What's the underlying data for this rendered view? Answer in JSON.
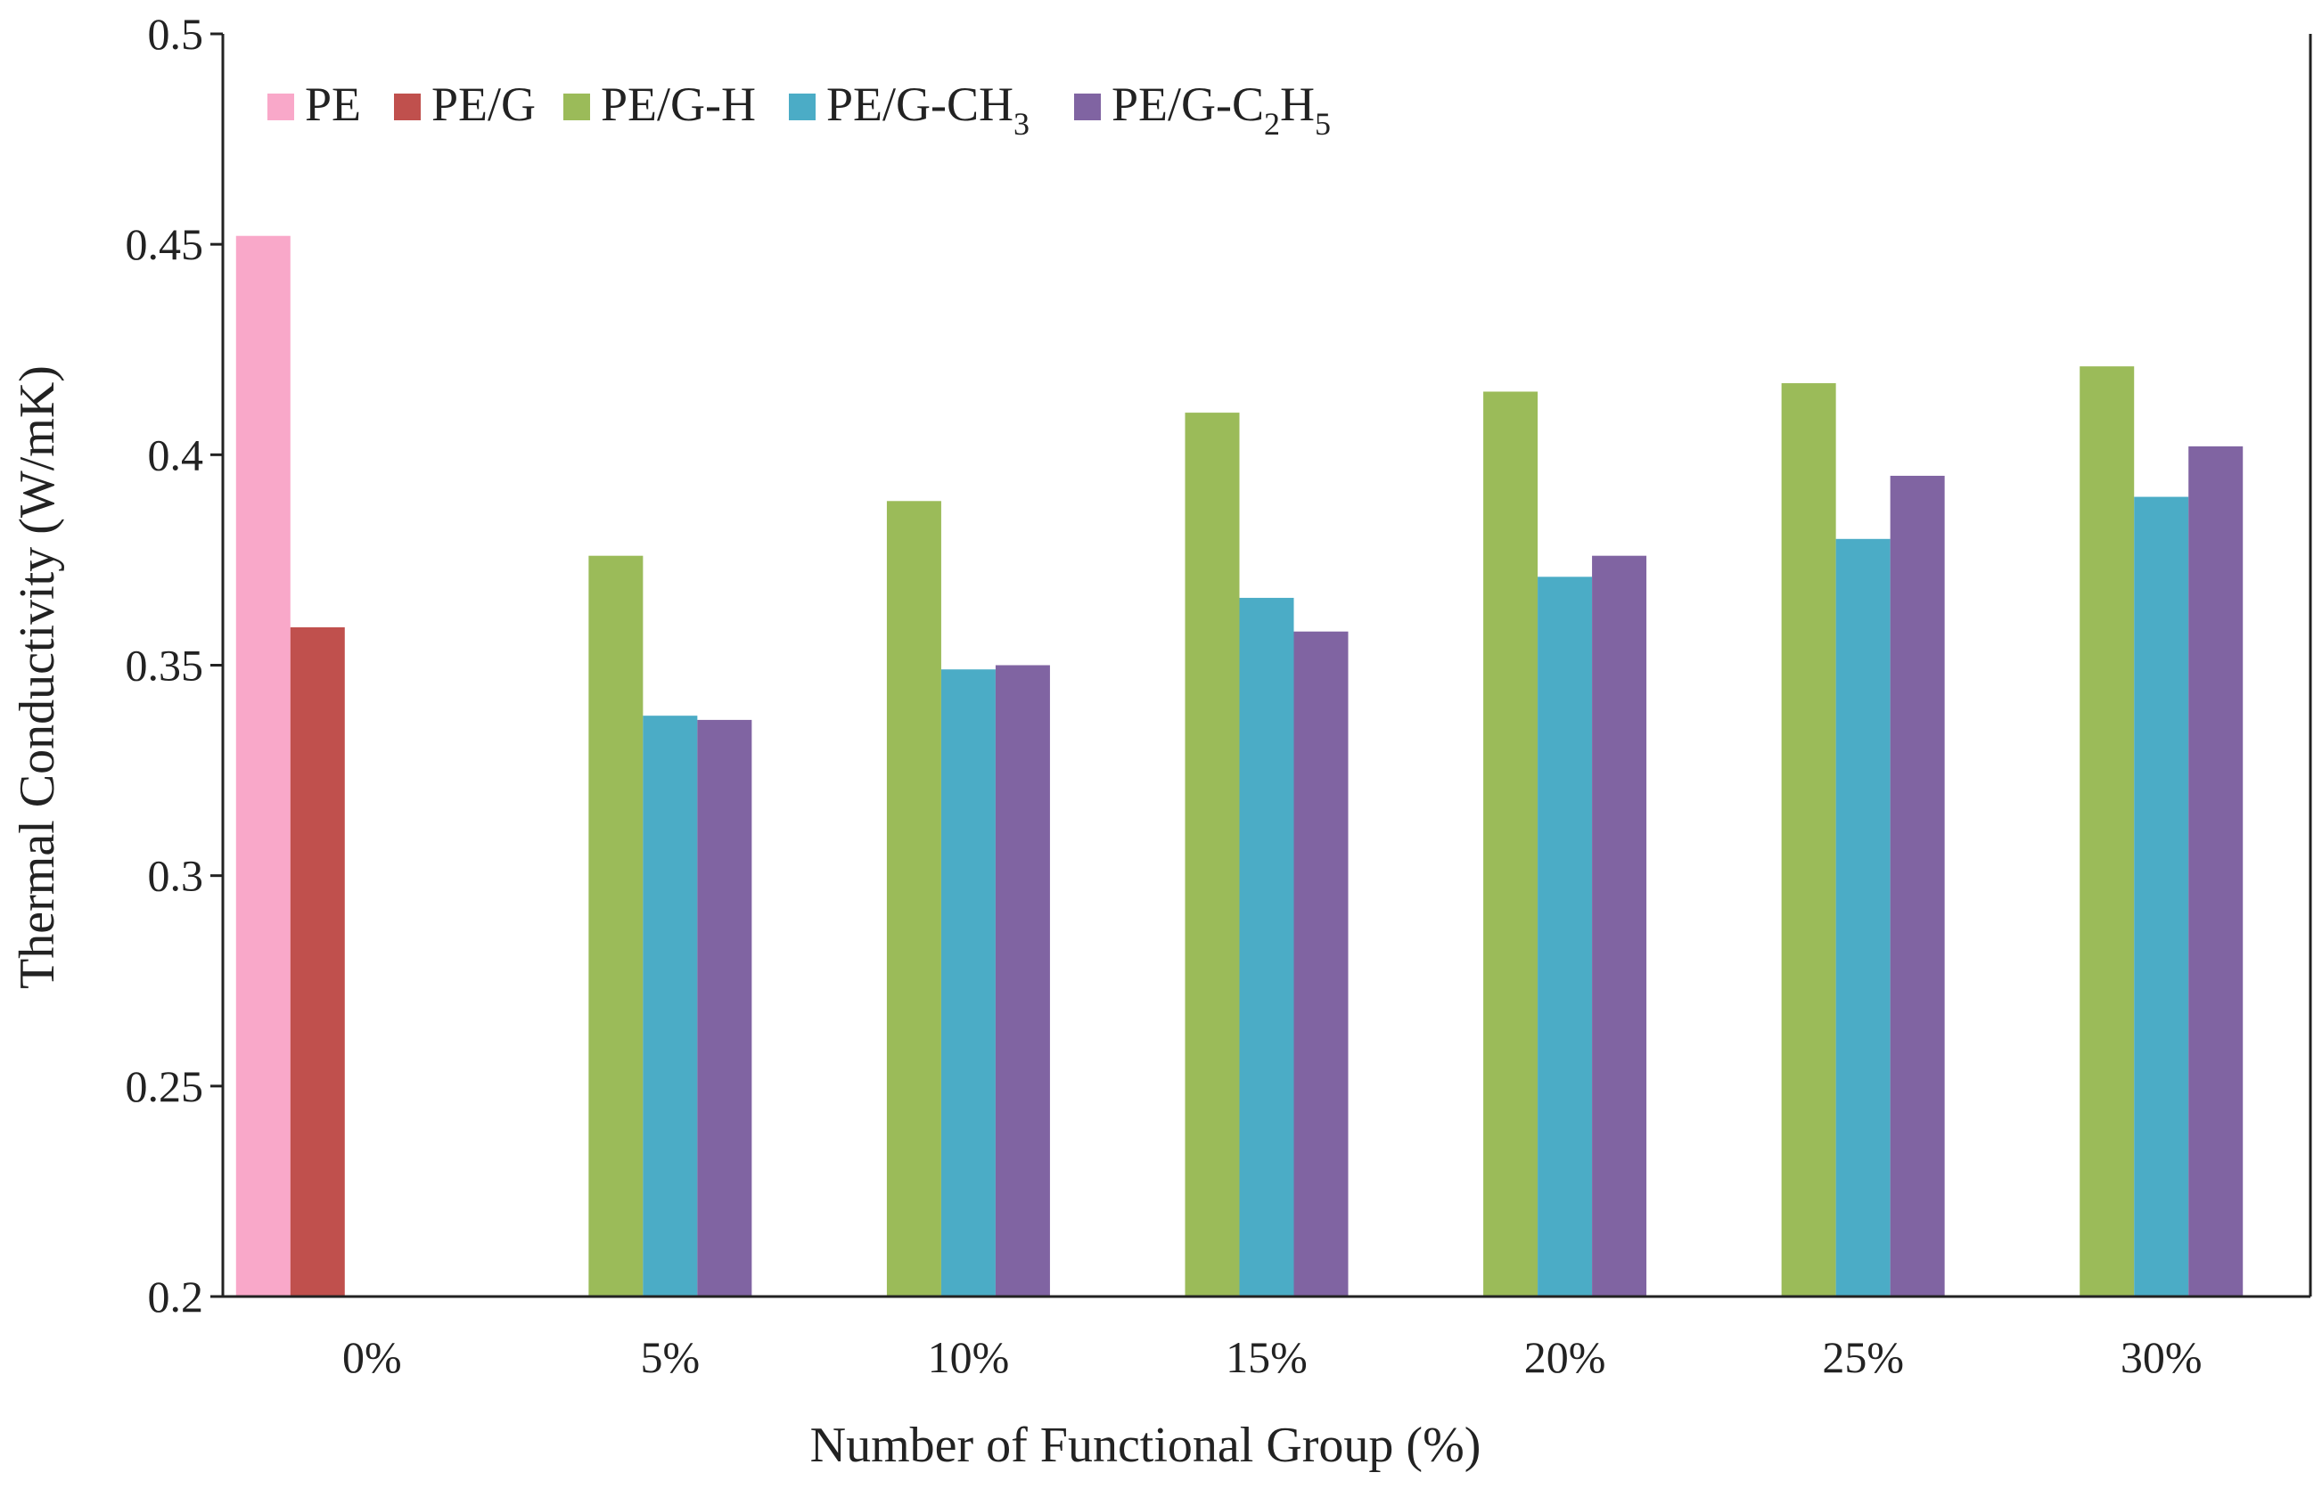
{
  "chart_data": {
    "type": "bar",
    "title": "",
    "xlabel": "Number of Functional Group (%)",
    "ylabel": "Thermal Conductivity (W/mK)",
    "ylim": [
      0.2,
      0.5
    ],
    "yticks": [
      "0.2",
      "0.25",
      "0.3",
      "0.35",
      "0.4",
      "0.45",
      "0.5"
    ],
    "categories": [
      "0%",
      "5%",
      "10%",
      "15%",
      "20%",
      "25%",
      "30%"
    ],
    "grid": false,
    "legend_position": "top-left",
    "series": [
      {
        "name": "PE",
        "label_main": "PE",
        "color": "#F9A8C9",
        "values": [
          0.452,
          null,
          null,
          null,
          null,
          null,
          null
        ]
      },
      {
        "name": "PE/G",
        "label_main": "PE/G",
        "color": "#C0504D",
        "values": [
          0.359,
          null,
          null,
          null,
          null,
          null,
          null
        ]
      },
      {
        "name": "PE/G-H",
        "label_main": "PE/G-H",
        "color": "#9BBB59",
        "values": [
          null,
          0.376,
          0.389,
          0.41,
          0.415,
          0.417,
          0.421
        ]
      },
      {
        "name": "PE/G-CH3",
        "label_main": "PE/G-CH",
        "label_sub": "3",
        "color": "#4BACC6",
        "values": [
          null,
          0.338,
          0.349,
          0.366,
          0.371,
          0.38,
          0.39
        ]
      },
      {
        "name": "PE/G-C2H5",
        "label_main": "PE/G-C",
        "label_sub": "2",
        "label_mid": "H",
        "label_sub2": "5",
        "color": "#8064A2",
        "values": [
          null,
          0.337,
          0.35,
          0.358,
          0.376,
          0.395,
          0.402
        ]
      }
    ]
  }
}
